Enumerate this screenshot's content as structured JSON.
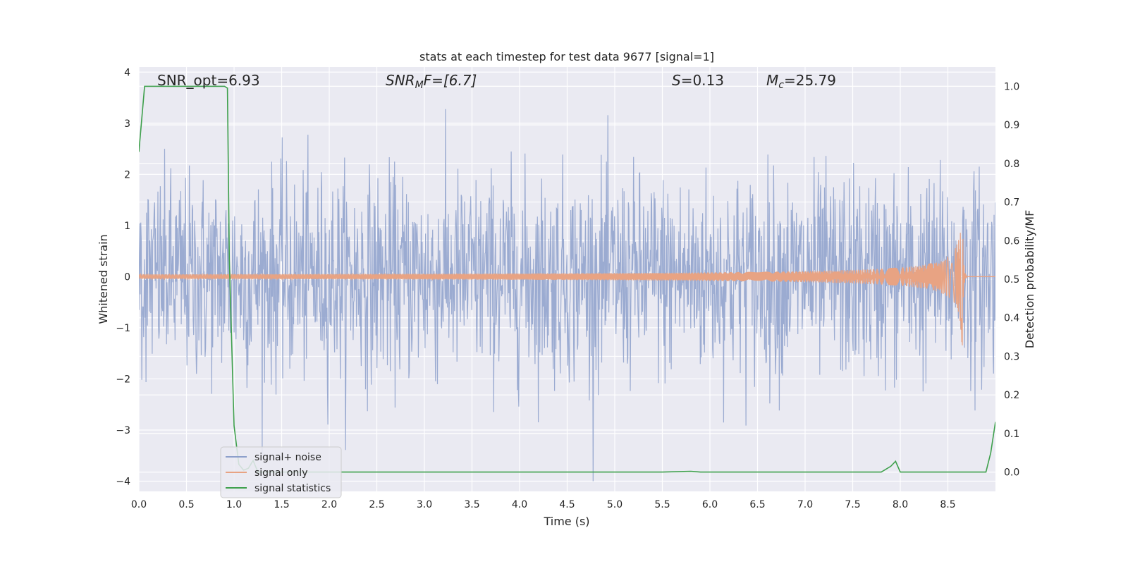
{
  "chart_data": {
    "type": "line",
    "title": "stats at each timestep for test data 9677 [signal=1]",
    "xlabel": "Time (s)",
    "ylabel": "Whitened strain",
    "ylabel_right": "Detection probability/MF",
    "xlim": [
      0.0,
      9.0
    ],
    "ylim": [
      -4.2,
      4.1
    ],
    "ylim_right": [
      -0.05,
      1.05
    ],
    "x_ticks": [
      "0.0",
      "0.5",
      "1.0",
      "1.5",
      "2.0",
      "2.5",
      "3.0",
      "3.5",
      "4.0",
      "4.5",
      "5.0",
      "5.5",
      "6.0",
      "6.5",
      "7.0",
      "7.5",
      "8.0",
      "8.5"
    ],
    "y_ticks": [
      "4",
      "3",
      "2",
      "1",
      "0",
      "−1",
      "−2",
      "−3",
      "−4"
    ],
    "y_tick_values": [
      4,
      3,
      2,
      1,
      0,
      -1,
      -2,
      -3,
      -4
    ],
    "y_right_ticks": [
      "1.0",
      "0.9",
      "0.8",
      "0.7",
      "0.6",
      "0.5",
      "0.4",
      "0.3",
      "0.2",
      "0.1",
      "0.0"
    ],
    "y_right_tick_values": [
      1.0,
      0.9,
      0.8,
      0.7,
      0.6,
      0.5,
      0.4,
      0.3,
      0.2,
      0.1,
      0.0
    ],
    "annotations": {
      "snr_opt": "SNR_opt=6.93",
      "snr_mf_base": "SNR",
      "snr_mf_sub": "M",
      "snr_mf_rest": "F=[6.7]",
      "s_var": "S",
      "s_rest": "=0.13",
      "mc_var": "M",
      "mc_sub": "c",
      "mc_rest": "=25.79"
    },
    "series": [
      {
        "name": "signal+ noise",
        "color": "#8da0cb",
        "axis": "left",
        "description": "whitened noisy strain, roughly ±2 with peaks near ±4",
        "envelope_std": 1.0,
        "max_abs": 4.0
      },
      {
        "name": "signal only",
        "color": "#e8a383",
        "axis": "left",
        "description": "chirp signal growing to peak near t=8.65 s",
        "merger_time": 8.65,
        "peak_amplitude": 1.65
      },
      {
        "name": "signal statistics",
        "color": "#3ea04c",
        "axis": "right",
        "x": [
          0.0,
          0.06,
          0.1,
          0.2,
          0.4,
          0.6,
          0.8,
          0.9,
          0.93,
          0.95,
          1.0,
          1.05,
          1.1,
          1.15,
          1.2,
          1.25,
          1.3,
          1.5,
          2.0,
          3.0,
          4.0,
          5.0,
          5.5,
          5.8,
          5.9,
          6.0,
          6.5,
          7.0,
          7.5,
          7.8,
          7.9,
          7.95,
          8.0,
          8.5,
          8.9,
          8.95,
          9.0
        ],
        "values": [
          0.83,
          1.0,
          1.0,
          1.0,
          1.0,
          1.0,
          1.0,
          1.0,
          0.995,
          0.55,
          0.12,
          0.02,
          0.005,
          0.01,
          0.03,
          0.0,
          0.0,
          0.0,
          0.0,
          0.0,
          0.0,
          0.0,
          0.0,
          0.002,
          0.0,
          0.0,
          0.0,
          0.0,
          0.0,
          0.0,
          0.015,
          0.028,
          0.0,
          0.0,
          0.0,
          0.05,
          0.13
        ]
      }
    ],
    "legend": {
      "position": "lower-left",
      "entries": [
        "signal+ noise",
        "signal only",
        "signal statistics"
      ]
    },
    "grid": true,
    "background": "#eaeaf2"
  }
}
